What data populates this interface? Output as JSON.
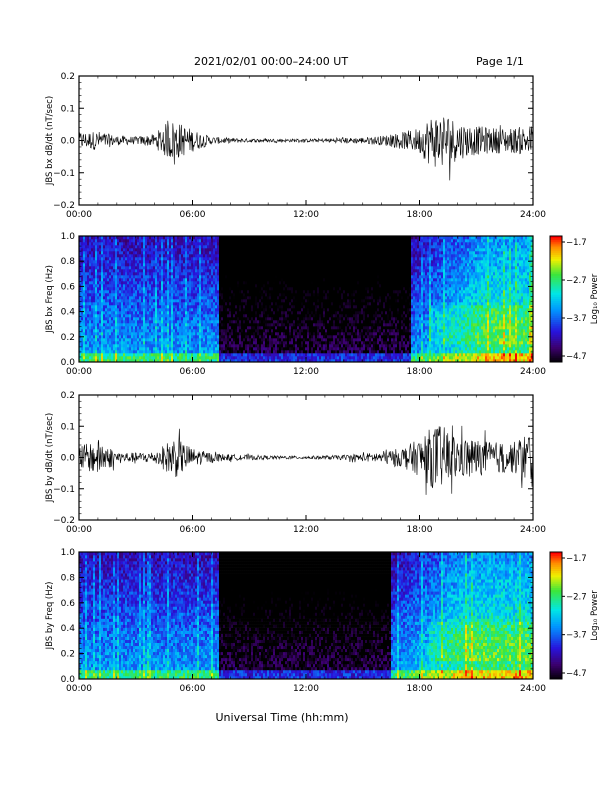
{
  "header": {
    "title": "2021/02/01  00:00–24:00 UT",
    "page": "Page 1/1"
  },
  "footer": {
    "xlabel": "Universal Time (hh:mm)"
  },
  "chart_data": [
    {
      "type": "line",
      "ylabel": "JBS bx dB/dt (nT/sec)",
      "x_ticks": [
        "00:00",
        "06:00",
        "12:00",
        "18:00",
        "24:00"
      ],
      "y_ticks": [
        "0.2",
        "0.1",
        "0.0",
        "−0.1",
        "−0.2"
      ],
      "xlim": [
        0,
        24
      ],
      "ylim": [
        -0.2,
        0.2
      ],
      "series": [
        {
          "x": [
            0,
            1,
            2,
            3,
            4,
            4.5,
            5,
            5.5,
            6,
            7,
            8,
            9,
            10,
            11,
            12,
            13,
            14,
            15,
            16,
            17,
            18,
            18.5,
            19,
            19.5,
            20,
            21,
            22,
            23,
            24
          ],
          "envelope": [
            0.025,
            0.03,
            0.015,
            0.012,
            0.02,
            0.05,
            0.065,
            0.05,
            0.035,
            0.012,
            0.008,
            0.006,
            0.005,
            0.005,
            0.005,
            0.006,
            0.008,
            0.01,
            0.015,
            0.025,
            0.04,
            0.075,
            0.09,
            0.085,
            0.06,
            0.045,
            0.04,
            0.04,
            0.05
          ]
        }
      ]
    },
    {
      "type": "heatmap",
      "ylabel": "JBS bx Freq (Hz)",
      "x_ticks": [
        "00:00",
        "06:00",
        "12:00",
        "18:00",
        "24:00"
      ],
      "y_ticks": [
        "1.0",
        "0.8",
        "0.6",
        "0.4",
        "0.2",
        "0.0"
      ],
      "xlim": [
        0,
        24
      ],
      "ylim": [
        0,
        1.0
      ],
      "colorbar": {
        "label": "Log₁₀ Power",
        "ticks": [
          "−1.7",
          "−2.7",
          "−3.7",
          "−4.7"
        ],
        "range": [
          -4.7,
          -1.7
        ]
      },
      "active_intervals": [
        [
          0,
          7.4
        ],
        [
          18,
          24
        ]
      ],
      "quiet_interval": [
        7.4,
        17.5
      ]
    },
    {
      "type": "line",
      "ylabel": "JBS by dB/dt (nT/sec)",
      "x_ticks": [
        "00:00",
        "06:00",
        "12:00",
        "18:00",
        "24:00"
      ],
      "y_ticks": [
        "0.2",
        "0.1",
        "0.0",
        "−0.1",
        "−0.2"
      ],
      "xlim": [
        0,
        24
      ],
      "ylim": [
        -0.2,
        0.2
      ],
      "series": [
        {
          "x": [
            0,
            0.5,
            1,
            1.5,
            2,
            3,
            4,
            4.5,
            5,
            5.5,
            6,
            7,
            8,
            9,
            10,
            11,
            12,
            13,
            14,
            15,
            16,
            17,
            18,
            18.5,
            19,
            19.5,
            20,
            21,
            22,
            23,
            24
          ],
          "envelope": [
            0.04,
            0.045,
            0.06,
            0.04,
            0.02,
            0.015,
            0.02,
            0.04,
            0.07,
            0.05,
            0.03,
            0.015,
            0.01,
            0.008,
            0.006,
            0.005,
            0.005,
            0.006,
            0.008,
            0.012,
            0.02,
            0.03,
            0.06,
            0.09,
            0.11,
            0.09,
            0.07,
            0.06,
            0.05,
            0.05,
            0.1
          ]
        }
      ]
    },
    {
      "type": "heatmap",
      "ylabel": "JBS by Freq (Hz)",
      "x_ticks": [
        "00:00",
        "06:00",
        "12:00",
        "18:00",
        "24:00"
      ],
      "y_ticks": [
        "1.0",
        "0.8",
        "0.6",
        "0.4",
        "0.2",
        "0.0"
      ],
      "xlim": [
        0,
        24
      ],
      "ylim": [
        0,
        1.0
      ],
      "colorbar": {
        "label": "Log₁₀ Power",
        "ticks": [
          "−1.7",
          "−2.7",
          "−3.7",
          "−4.7"
        ],
        "range": [
          -4.7,
          -1.7
        ]
      },
      "active_intervals": [
        [
          0,
          7.4
        ],
        [
          17,
          24
        ]
      ],
      "quiet_interval": [
        7.4,
        16.5
      ]
    }
  ]
}
